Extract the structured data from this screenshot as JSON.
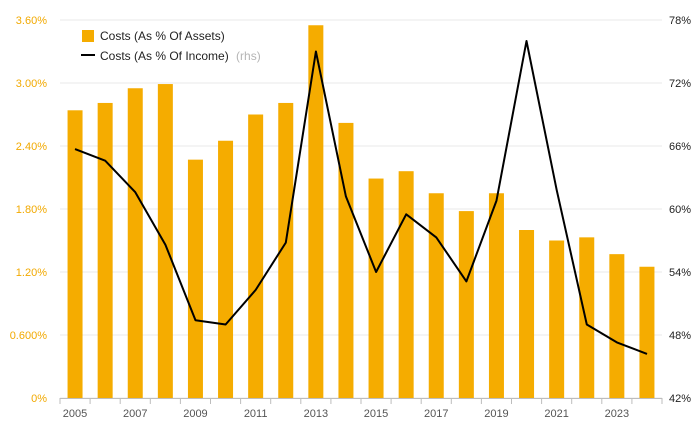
{
  "chart_data": {
    "type": "bar+line",
    "categories": [
      "2005",
      "2006",
      "2007",
      "2008",
      "2009",
      "2010",
      "2011",
      "2012",
      "2013",
      "2014",
      "2015",
      "2016",
      "2017",
      "2018",
      "2019",
      "2020",
      "2021",
      "2022",
      "2023",
      "2024"
    ],
    "x_tick_labels": [
      "2005",
      "2007",
      "2009",
      "2011",
      "2013",
      "2015",
      "2017",
      "2019",
      "2021",
      "2023"
    ],
    "series": [
      {
        "name": "Costs (As % Of Assets)",
        "type": "bar",
        "axis": "left",
        "color": "#f5ac00",
        "values": [
          2.74,
          2.81,
          2.95,
          2.99,
          2.27,
          2.45,
          2.7,
          2.81,
          3.55,
          2.62,
          2.09,
          2.16,
          1.95,
          1.78,
          1.95,
          1.6,
          1.5,
          1.53,
          1.37,
          1.25
        ]
      },
      {
        "name": "Costs (As % Of Income)",
        "name_suffix": "(rhs)",
        "type": "line",
        "axis": "right",
        "color": "#000000",
        "values": [
          65.7,
          64.6,
          61.6,
          56.6,
          49.4,
          49.0,
          52.3,
          56.8,
          75.0,
          61.2,
          54.0,
          59.5,
          57.3,
          53.1,
          60.8,
          76.0,
          61.8,
          49.0,
          47.3,
          46.2
        ]
      }
    ],
    "y_left": {
      "ticks": [
        "0%",
        "0.600%",
        "1.20%",
        "1.80%",
        "2.40%",
        "3.00%",
        "3.60%"
      ],
      "lim": [
        0,
        3.6
      ]
    },
    "y_right": {
      "ticks": [
        "42%",
        "48%",
        "54%",
        "60%",
        "66%",
        "72%",
        "78%"
      ],
      "lim": [
        42,
        78
      ]
    },
    "grid": true,
    "legend_position": "top-left"
  }
}
